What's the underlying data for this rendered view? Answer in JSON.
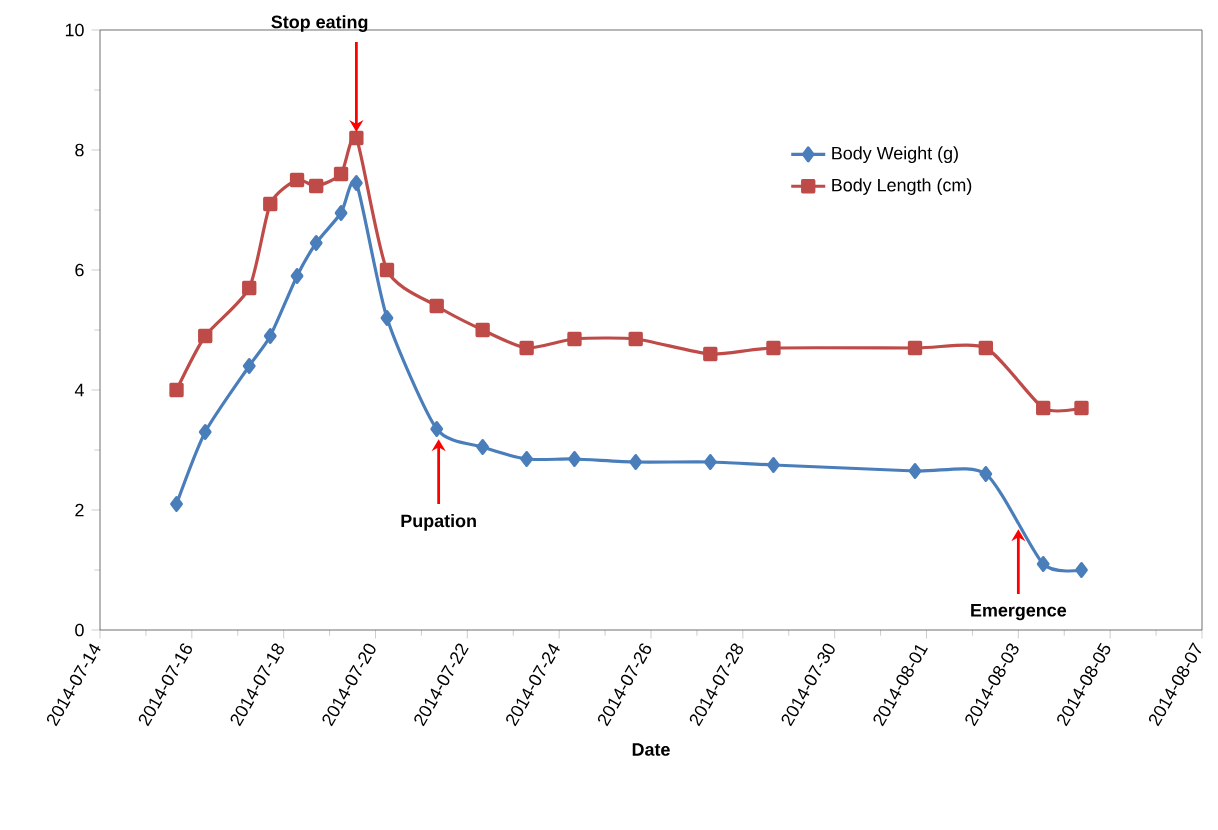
{
  "chart_data": {
    "type": "line",
    "xlabel": "Date",
    "x": [
      "2014-07-15T16:00",
      "2014-07-16T07:00",
      "2014-07-17T06:00",
      "2014-07-17T17:00",
      "2014-07-18T07:00",
      "2014-07-18T17:00",
      "2014-07-19T06:00",
      "2014-07-19T14:00",
      "2014-07-20T06:00",
      "2014-07-21T08:00",
      "2014-07-22T08:00",
      "2014-07-23T07:00",
      "2014-07-24T08:00",
      "2014-07-25T16:00",
      "2014-07-27T07:00",
      "2014-07-28T16:00",
      "2014-07-31T18:00",
      "2014-08-02T07:00",
      "2014-08-03T13:00",
      "2014-08-04T09:00"
    ],
    "series": [
      {
        "name": "Body Weight (g)",
        "color": "#4a7ebb",
        "marker": "diamond",
        "values": [
          2.1,
          3.3,
          4.4,
          4.9,
          5.9,
          6.45,
          6.95,
          7.45,
          5.2,
          3.35,
          3.05,
          2.85,
          2.85,
          2.8,
          2.8,
          2.75,
          2.65,
          2.6,
          1.1,
          1.0
        ]
      },
      {
        "name": "Body Length (cm)",
        "color": "#be4b48",
        "marker": "square",
        "values": [
          4.0,
          4.9,
          5.7,
          7.1,
          7.5,
          7.4,
          7.6,
          8.2,
          6.0,
          5.4,
          5.0,
          4.7,
          4.85,
          4.85,
          4.6,
          4.7,
          4.7,
          4.7,
          3.7,
          3.7
        ]
      }
    ],
    "xlim": [
      "2014-07-14",
      "2014-08-07"
    ],
    "xticks": [
      "2014-07-14",
      "2014-07-16",
      "2014-07-18",
      "2014-07-20",
      "2014-07-22",
      "2014-07-24",
      "2014-07-26",
      "2014-07-28",
      "2014-07-30",
      "2014-08-01",
      "2014-08-03",
      "2014-08-05",
      "2014-08-07"
    ],
    "ylim": [
      0,
      10
    ],
    "yticks": [
      0,
      2,
      4,
      6,
      8,
      10
    ],
    "annotations": [
      {
        "text": "Stop eating",
        "x": "2014-07-19T14:00",
        "y": 8.2
      },
      {
        "text": "Pupation",
        "x": "2014-07-21T09:00",
        "y": 3.2
      },
      {
        "text": "Emergence",
        "x": "2014-08-03",
        "y": 1.7
      }
    ],
    "legend": "top right",
    "grid": false
  }
}
